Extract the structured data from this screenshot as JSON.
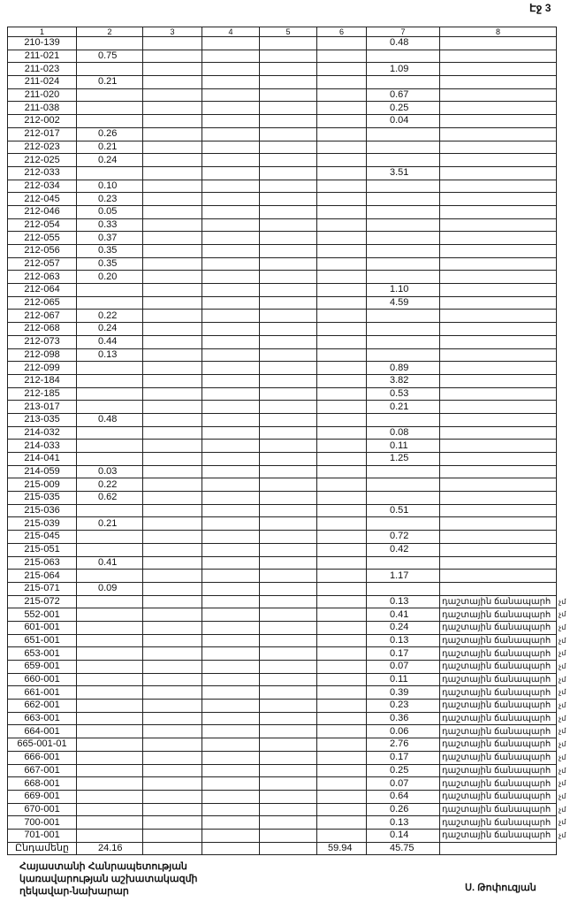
{
  "page_label": "Էջ 3",
  "table": {
    "headers": [
      "1",
      "2",
      "3",
      "4",
      "5",
      "6",
      "7",
      "8"
    ],
    "rows": [
      [
        "210-139",
        "",
        "",
        "",
        "",
        "",
        "0.48",
        ""
      ],
      [
        "211-021",
        "0.75",
        "",
        "",
        "",
        "",
        "",
        ""
      ],
      [
        "211-023",
        "",
        "",
        "",
        "",
        "",
        "1.09",
        ""
      ],
      [
        "211-024",
        "0.21",
        "",
        "",
        "",
        "",
        "",
        ""
      ],
      [
        "211-020",
        "",
        "",
        "",
        "",
        "",
        "0.67",
        ""
      ],
      [
        "211-038",
        "",
        "",
        "",
        "",
        "",
        "0.25",
        ""
      ],
      [
        "212-002",
        "",
        "",
        "",
        "",
        "",
        "0.04",
        ""
      ],
      [
        "212-017",
        "0.26",
        "",
        "",
        "",
        "",
        "",
        ""
      ],
      [
        "212-023",
        "0.21",
        "",
        "",
        "",
        "",
        "",
        ""
      ],
      [
        "212-025",
        "0.24",
        "",
        "",
        "",
        "",
        "",
        ""
      ],
      [
        "212-033",
        "",
        "",
        "",
        "",
        "",
        "3.51",
        ""
      ],
      [
        "212-034",
        "0.10",
        "",
        "",
        "",
        "",
        "",
        ""
      ],
      [
        "212-045",
        "0.23",
        "",
        "",
        "",
        "",
        "",
        ""
      ],
      [
        "212-046",
        "0.05",
        "",
        "",
        "",
        "",
        "",
        ""
      ],
      [
        "212-054",
        "0.33",
        "",
        "",
        "",
        "",
        "",
        ""
      ],
      [
        "212-055",
        "0.37",
        "",
        "",
        "",
        "",
        "",
        ""
      ],
      [
        "212-056",
        "0.35",
        "",
        "",
        "",
        "",
        "",
        ""
      ],
      [
        "212-057",
        "0.35",
        "",
        "",
        "",
        "",
        "",
        ""
      ],
      [
        "212-063",
        "0.20",
        "",
        "",
        "",
        "",
        "",
        ""
      ],
      [
        "212-064",
        "",
        "",
        "",
        "",
        "",
        "1.10",
        ""
      ],
      [
        "212-065",
        "",
        "",
        "",
        "",
        "",
        "4.59",
        ""
      ],
      [
        "212-067",
        "0.22",
        "",
        "",
        "",
        "",
        "",
        ""
      ],
      [
        "212-068",
        "0.24",
        "",
        "",
        "",
        "",
        "",
        ""
      ],
      [
        "212-073",
        "0.44",
        "",
        "",
        "",
        "",
        "",
        ""
      ],
      [
        "212-098",
        "0.13",
        "",
        "",
        "",
        "",
        "",
        ""
      ],
      [
        "212-099",
        "",
        "",
        "",
        "",
        "",
        "0.89",
        ""
      ],
      [
        "212-184",
        "",
        "",
        "",
        "",
        "",
        "3.82",
        ""
      ],
      [
        "212-185",
        "",
        "",
        "",
        "",
        "",
        "0.53",
        ""
      ],
      [
        "213-017",
        "",
        "",
        "",
        "",
        "",
        "0.21",
        ""
      ],
      [
        "213-035",
        "0.48",
        "",
        "",
        "",
        "",
        "",
        ""
      ],
      [
        "214-032",
        "",
        "",
        "",
        "",
        "",
        "0.08",
        ""
      ],
      [
        "214-033",
        "",
        "",
        "",
        "",
        "",
        "0.11",
        ""
      ],
      [
        "214-041",
        "",
        "",
        "",
        "",
        "",
        "1.25",
        ""
      ],
      [
        "214-059",
        "0.03",
        "",
        "",
        "",
        "",
        "",
        ""
      ],
      [
        "215-009",
        "0.22",
        "",
        "",
        "",
        "",
        "",
        ""
      ],
      [
        "215-035",
        "0.62",
        "",
        "",
        "",
        "",
        "",
        ""
      ],
      [
        "215-036",
        "",
        "",
        "",
        "",
        "",
        "0.51",
        ""
      ],
      [
        "215-039",
        "0.21",
        "",
        "",
        "",
        "",
        "",
        ""
      ],
      [
        "215-045",
        "",
        "",
        "",
        "",
        "",
        "0.72",
        ""
      ],
      [
        "215-051",
        "",
        "",
        "",
        "",
        "",
        "0.42",
        ""
      ],
      [
        "215-063",
        "0.41",
        "",
        "",
        "",
        "",
        "",
        ""
      ],
      [
        "215-064",
        "",
        "",
        "",
        "",
        "",
        "1.17",
        ""
      ],
      [
        "215-071",
        "0.09",
        "",
        "",
        "",
        "",
        "",
        ""
      ],
      [
        "215-072",
        "",
        "",
        "",
        "",
        "",
        "0.13",
        "դաշտային ճանապարհ"
      ],
      [
        "552-001",
        "",
        "",
        "",
        "",
        "",
        "0.41",
        "դաշտային ճանապարհ"
      ],
      [
        "601-001",
        "",
        "",
        "",
        "",
        "",
        "0.24",
        "դաշտային ճանապարհ"
      ],
      [
        "651-001",
        "",
        "",
        "",
        "",
        "",
        "0.13",
        "դաշտային ճանապարհ"
      ],
      [
        "653-001",
        "",
        "",
        "",
        "",
        "",
        "0.17",
        "դաշտային ճանապարհ"
      ],
      [
        "659-001",
        "",
        "",
        "",
        "",
        "",
        "0.07",
        "դաշտային ճանապարհ"
      ],
      [
        "660-001",
        "",
        "",
        "",
        "",
        "",
        "0.11",
        "դաշտային ճանապարհ"
      ],
      [
        "661-001",
        "",
        "",
        "",
        "",
        "",
        "0.39",
        "դաշտային ճանապարհ"
      ],
      [
        "662-001",
        "",
        "",
        "",
        "",
        "",
        "0.23",
        "դաշտային ճանապարհ"
      ],
      [
        "663-001",
        "",
        "",
        "",
        "",
        "",
        "0.36",
        "դաշտային ճանապարհ"
      ],
      [
        "664-001",
        "",
        "",
        "",
        "",
        "",
        "0.06",
        "դաշտային ճանապարհ"
      ],
      [
        "665-001-01",
        "",
        "",
        "",
        "",
        "",
        "2.76",
        "դաշտային ճանապարհ"
      ],
      [
        "666-001",
        "",
        "",
        "",
        "",
        "",
        "0.17",
        "դաշտային ճանապարհ"
      ],
      [
        "667-001",
        "",
        "",
        "",
        "",
        "",
        "0.25",
        "դաշտային ճանապարհ"
      ],
      [
        "668-001",
        "",
        "",
        "",
        "",
        "",
        "0.07",
        "դաշտային ճանապարհ"
      ],
      [
        "669-001",
        "",
        "",
        "",
        "",
        "",
        "0.64",
        "դաշտային ճանապարհ"
      ],
      [
        "670-001",
        "",
        "",
        "",
        "",
        "",
        "0.26",
        "դաշտային ճանապարհ"
      ],
      [
        "700-001",
        "",
        "",
        "",
        "",
        "",
        "0.13",
        "դաշտային ճանապարհ"
      ],
      [
        "701-001",
        "",
        "",
        "",
        "",
        "",
        "0.14",
        "դաշտային ճանապարհ"
      ]
    ],
    "overflow_suffix": "չմ",
    "total_row": [
      "Ընդամենը",
      "24.16",
      "",
      "",
      "",
      "59.94",
      "45.75",
      ""
    ]
  },
  "footer": {
    "position_lines": [
      "Հայաստանի Հանրապետության",
      "կառավարության աշխատակազմի",
      "ղեկավար-նախարար"
    ],
    "signatory": "Ս. Թոփուզյան"
  }
}
